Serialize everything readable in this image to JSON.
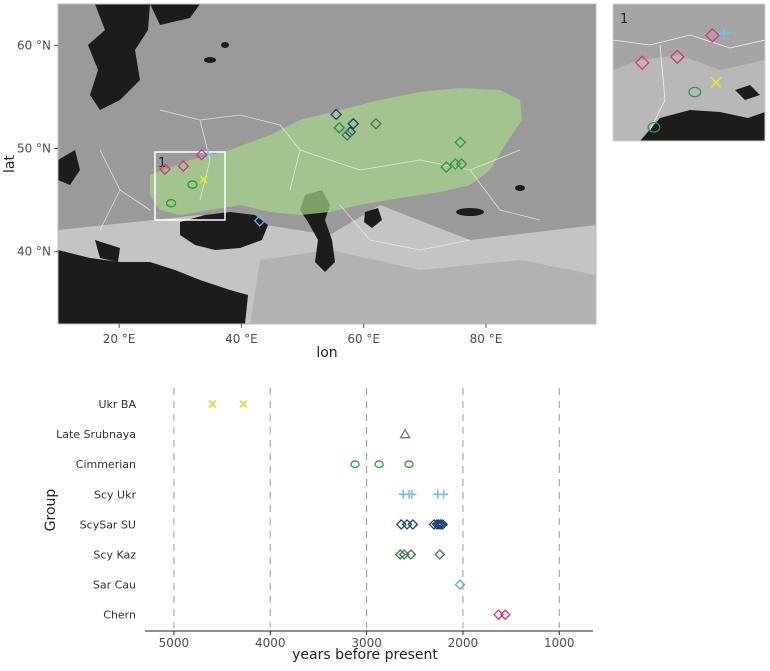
{
  "chart_data": [
    {
      "type": "map",
      "xlabel": "lon",
      "ylabel": "lat",
      "x_ticks": [
        "20 °E",
        "40 °E",
        "60 °E",
        "80 °E"
      ],
      "y_ticks": [
        "60 °N",
        "50 °N",
        "40 °N"
      ],
      "xlim": [
        10,
        98
      ],
      "ylim": [
        33,
        64
      ],
      "inset_label": "1",
      "region_color": "#a8d68a",
      "points": [
        {
          "group": "Scy Ukr",
          "lon": 34.5,
          "lat": 49.5,
          "color": "#6ec6e8"
        },
        {
          "group": "Ukr BA",
          "lon": 33.8,
          "lat": 47.0,
          "color": "#e6e62e"
        },
        {
          "group": "Chern",
          "lon": 27.5,
          "lat": 48.0,
          "color": "#e0307c"
        },
        {
          "group": "Chern",
          "lon": 30.5,
          "lat": 48.3,
          "color": "#e0307c"
        },
        {
          "group": "Chern",
          "lon": 33.5,
          "lat": 49.4,
          "color": "#e0307c"
        },
        {
          "group": "Cimmerian",
          "lon": 28.5,
          "lat": 44.7,
          "color": "#2e9a3c"
        },
        {
          "group": "Cimmerian",
          "lon": 32.0,
          "lat": 46.5,
          "color": "#2e9a3c"
        },
        {
          "group": "Sar Cau",
          "lon": 43.0,
          "lat": 43.0,
          "color": "#6fb0e0"
        },
        {
          "group": "ScySar SU",
          "lon": 55.5,
          "lat": 53.3,
          "color": "#1f3f78"
        },
        {
          "group": "ScySar SU",
          "lon": 58.3,
          "lat": 52.4,
          "color": "#1f3f78"
        },
        {
          "group": "ScySar SU",
          "lon": 57.8,
          "lat": 51.6,
          "color": "#1f3f78"
        },
        {
          "group": "Scy Kaz",
          "lon": 56.0,
          "lat": 52.0,
          "color": "#3d7a50"
        },
        {
          "group": "Scy Kaz",
          "lon": 57.3,
          "lat": 51.3,
          "color": "#3d7a50"
        },
        {
          "group": "Scy Kaz",
          "lon": 62.0,
          "lat": 52.4,
          "color": "#3d7a50"
        },
        {
          "group": "Scy Kaz",
          "lon": 75.8,
          "lat": 50.6,
          "color": "#2e9a3c"
        },
        {
          "group": "Scy Kaz",
          "lon": 73.5,
          "lat": 48.2,
          "color": "#2e9a3c"
        },
        {
          "group": "Scy Kaz",
          "lon": 75.0,
          "lat": 48.5,
          "color": "#2e9a3c"
        },
        {
          "group": "Scy Kaz",
          "lon": 76.0,
          "lat": 48.5,
          "color": "#2e9a3c"
        }
      ]
    },
    {
      "type": "scatter",
      "xlabel": "years before present",
      "ylabel": "Group",
      "xlim": [
        5300,
        650
      ],
      "x_ticks": [
        5000,
        4000,
        3000,
        2000,
        1000
      ],
      "categories": [
        "Ukr BA",
        "Late Srubnaya",
        "Cimmerian",
        "Scy Ukr",
        "ScySar SU",
        "Scy Kaz",
        "Sar Cau",
        "Chern"
      ],
      "series": [
        {
          "category": "Ukr BA",
          "marker": "x",
          "color": "#e0d62a",
          "values": [
            4600,
            4280
          ]
        },
        {
          "category": "Late Srubnaya",
          "marker": "triangle",
          "color": "#6d7a93",
          "values": [
            2600
          ]
        },
        {
          "category": "Cimmerian",
          "marker": "circle",
          "color": "#2e9a3c",
          "values": [
            3120,
            2870,
            2560
          ]
        },
        {
          "category": "Scy Ukr",
          "marker": "plus",
          "color": "#6ec6e8",
          "values": [
            2620,
            2560,
            2530,
            2260,
            2200
          ]
        },
        {
          "category": "ScySar SU",
          "marker": "diamond",
          "color": "#1f3f78",
          "values": [
            2640,
            2580,
            2520,
            2300,
            2270,
            2250,
            2230,
            2210
          ]
        },
        {
          "category": "Scy Kaz",
          "marker": "diamond",
          "color": "#3d7a50",
          "values": [
            2650,
            2610,
            2540,
            2240
          ]
        },
        {
          "category": "Sar Cau",
          "marker": "diamond",
          "color": "#5aa8e0",
          "values": [
            2030
          ]
        },
        {
          "category": "Chern",
          "marker": "diamond",
          "color": "#e0307c",
          "values": [
            1630,
            1560
          ]
        }
      ]
    }
  ]
}
